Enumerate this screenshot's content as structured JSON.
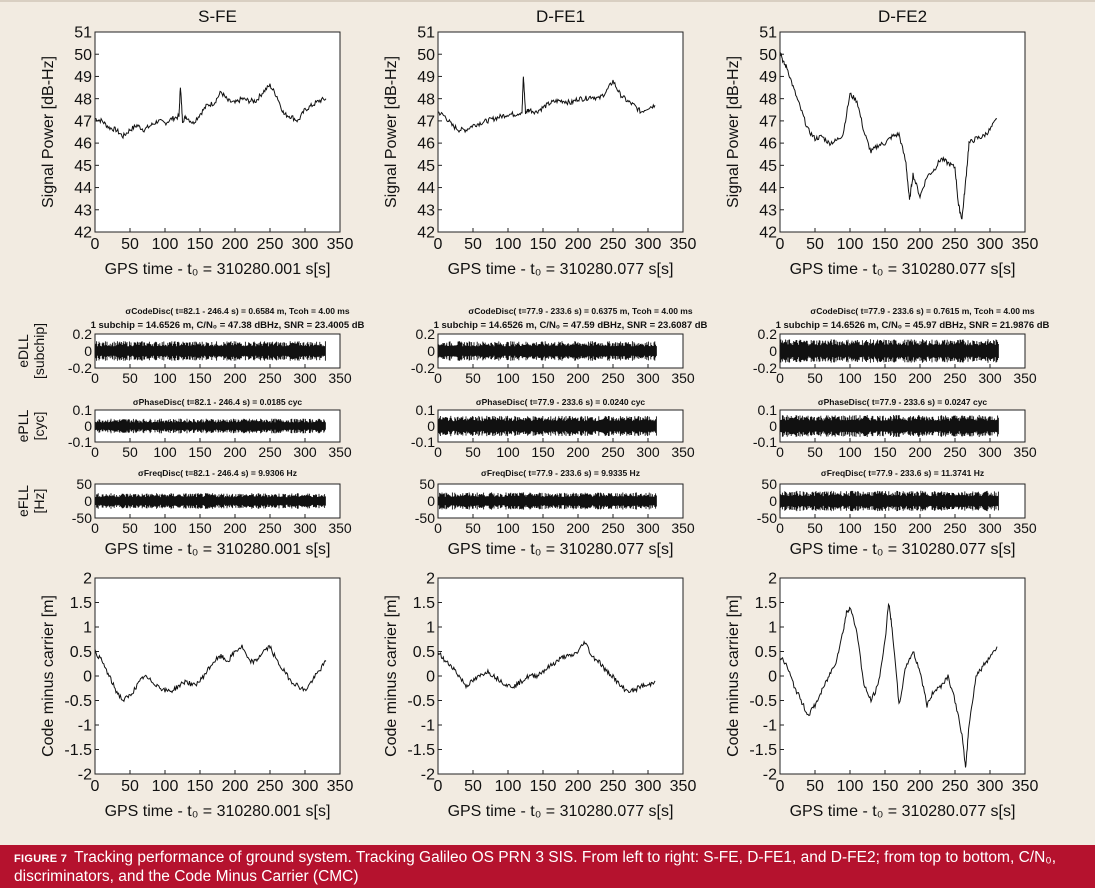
{
  "caption": {
    "label": "FIGURE 7",
    "text": "Tracking performance of ground system. Tracking Galileo OS PRN 3 SIS. From left to right: S-FE, D-FE1, and D-FE2; from top to bottom, C/N₀, discriminators, and the Code Minus Carrier (CMC)"
  },
  "columns": [
    {
      "title": "S-FE",
      "xlabel": "GPS time - t₀ = 310280.001 s[s]",
      "xmax": 330,
      "code_disc": "σCodeDisc( t=82.1 - 246.4 s) = 0.6584 m, Tcoh = 4.00 ms",
      "code_disc2": "1 subchip = 14.6526 m, C/N₀ = 47.38 dBHz, SNR = 23.4005 dB",
      "phase_disc": "σPhaseDisc( t=82.1 - 246.4 s) = 0.0185 cyc",
      "freq_disc": "σFreqDisc( t=82.1 - 246.4 s) = 9.9306 Hz"
    },
    {
      "title": "D-FE1",
      "xlabel": "GPS time - t₀ = 310280.077 s[s]",
      "xmax": 312,
      "code_disc": "σCodeDisc( t=77.9 - 233.6 s) = 0.6375 m, Tcoh = 4.00 ms",
      "code_disc2": "1 subchip = 14.6526 m, C/N₀ = 47.59 dBHz, SNR = 23.6087 dB",
      "phase_disc": "σPhaseDisc( t=77.9 - 233.6 s) = 0.0240 cyc",
      "freq_disc": "σFreqDisc( t=77.9 - 233.6 s) = 9.9335 Hz"
    },
    {
      "title": "D-FE2",
      "xlabel": "GPS time - t₀ = 310280.077 s[s]",
      "xmax": 312,
      "code_disc": "σCodeDisc( t=77.9 - 233.6 s) = 0.7615 m, Tcoh = 4.00 ms",
      "code_disc2": "1 subchip = 14.6526 m, C/N₀ = 45.97 dBHz, SNR = 21.9876 dB",
      "phase_disc": "σPhaseDisc( t=77.9 - 233.6 s) = 0.0247 cyc",
      "freq_disc": "σFreqDisc( t=77.9 - 233.6 s) = 11.3741 Hz"
    }
  ],
  "chart_data": [
    {
      "type": "line",
      "row": "cn0",
      "ylabel": "Signal Power [dB-Hz]",
      "xlim": [
        0,
        350
      ],
      "ylim": [
        42,
        51
      ],
      "xticks": [
        0,
        50,
        100,
        150,
        200,
        250,
        300,
        350
      ],
      "yticks": [
        42,
        43,
        44,
        45,
        46,
        47,
        48,
        49,
        50,
        51
      ],
      "series": [
        {
          "column": "S-FE",
          "x": [
            0,
            10,
            20,
            30,
            40,
            50,
            60,
            70,
            80,
            90,
            100,
            110,
            120,
            122,
            125,
            130,
            140,
            150,
            160,
            170,
            180,
            190,
            200,
            210,
            220,
            230,
            240,
            250,
            260,
            270,
            280,
            290,
            300,
            310,
            320,
            330
          ],
          "y": [
            47.1,
            47.0,
            46.7,
            46.6,
            46.3,
            46.6,
            46.8,
            46.6,
            46.8,
            47.0,
            46.9,
            47.1,
            47.2,
            48.6,
            47.0,
            47.2,
            46.9,
            47.3,
            47.7,
            47.8,
            48.3,
            47.9,
            47.8,
            48.0,
            47.9,
            47.9,
            48.3,
            48.6,
            48.1,
            47.3,
            47.2,
            47.0,
            47.5,
            47.7,
            47.9,
            48.0
          ]
        },
        {
          "column": "D-FE1",
          "x": [
            0,
            10,
            20,
            30,
            40,
            50,
            60,
            70,
            80,
            90,
            100,
            110,
            120,
            122,
            125,
            130,
            140,
            150,
            160,
            170,
            180,
            190,
            200,
            210,
            220,
            230,
            240,
            250,
            260,
            270,
            280,
            290,
            300,
            310
          ],
          "y": [
            47.4,
            47.2,
            46.8,
            46.6,
            46.6,
            46.8,
            46.9,
            47.0,
            47.1,
            47.2,
            47.3,
            47.3,
            47.4,
            49.0,
            47.4,
            47.5,
            47.4,
            47.6,
            47.8,
            47.9,
            47.9,
            47.8,
            48.0,
            48.0,
            48.1,
            48.0,
            48.3,
            48.8,
            48.2,
            47.9,
            47.7,
            47.4,
            47.6,
            47.7
          ]
        },
        {
          "column": "D-FE2",
          "x": [
            0,
            5,
            10,
            20,
            30,
            40,
            50,
            60,
            70,
            80,
            90,
            100,
            110,
            120,
            130,
            140,
            150,
            160,
            170,
            180,
            185,
            190,
            200,
            210,
            220,
            230,
            240,
            250,
            255,
            260,
            265,
            270,
            280,
            290,
            300,
            310
          ],
          "y": [
            50.2,
            49.6,
            49.4,
            48.4,
            47.5,
            46.6,
            46.2,
            46.3,
            46.0,
            46.1,
            46.4,
            48.2,
            47.9,
            46.5,
            45.6,
            45.9,
            46.0,
            46.3,
            46.4,
            45.1,
            43.4,
            44.6,
            43.6,
            44.5,
            44.8,
            45.3,
            45.1,
            44.9,
            43.2,
            42.6,
            44.2,
            46.0,
            46.2,
            46.3,
            46.6,
            47.1
          ]
        }
      ]
    },
    {
      "type": "line",
      "row": "dll",
      "ylabel": "eDLL [subchip]",
      "xlim": [
        0,
        350
      ],
      "ylim": [
        -0.2,
        0.2
      ],
      "xticks": [
        0,
        50,
        100,
        150,
        200,
        250,
        300,
        350
      ],
      "yticks": [
        -0.2,
        0,
        0.2
      ],
      "series": [
        {
          "column": "S-FE",
          "x": [
            0,
            330
          ],
          "amplitude": 0.1
        },
        {
          "column": "D-FE1",
          "x": [
            0,
            312
          ],
          "amplitude": 0.1
        },
        {
          "column": "D-FE2",
          "x": [
            0,
            312
          ],
          "amplitude": 0.12
        }
      ]
    },
    {
      "type": "line",
      "row": "pll",
      "ylabel": "ePLL [cyc]",
      "xlim": [
        0,
        350
      ],
      "ylim": [
        -0.1,
        0.1
      ],
      "xticks": [
        0,
        50,
        100,
        150,
        200,
        250,
        300,
        350
      ],
      "yticks": [
        -0.1,
        0,
        0.1
      ],
      "series": [
        {
          "column": "S-FE",
          "x": [
            0,
            330
          ],
          "amplitude": 0.04
        },
        {
          "column": "D-FE1",
          "x": [
            0,
            312
          ],
          "amplitude": 0.055
        },
        {
          "column": "D-FE2",
          "x": [
            0,
            312
          ],
          "amplitude": 0.06
        }
      ]
    },
    {
      "type": "line",
      "row": "fll",
      "ylabel": "eFLL [Hz]",
      "xlim": [
        0,
        350
      ],
      "ylim": [
        -50,
        50
      ],
      "xticks": [
        0,
        50,
        100,
        150,
        200,
        250,
        300,
        350
      ],
      "yticks": [
        -50,
        0,
        50
      ],
      "series": [
        {
          "column": "S-FE",
          "x": [
            0,
            330
          ],
          "amplitude": 20
        },
        {
          "column": "D-FE1",
          "x": [
            0,
            312
          ],
          "amplitude": 22
        },
        {
          "column": "D-FE2",
          "x": [
            0,
            312
          ],
          "amplitude": 26
        }
      ]
    },
    {
      "type": "line",
      "row": "cmc",
      "ylabel": "Code minus carrier [m]",
      "xlim": [
        0,
        350
      ],
      "ylim": [
        -2,
        2
      ],
      "xticks": [
        0,
        50,
        100,
        150,
        200,
        250,
        300,
        350
      ],
      "yticks": [
        -2,
        -1.5,
        -1,
        -0.5,
        0,
        0.5,
        1,
        1.5,
        2
      ],
      "series": [
        {
          "column": "S-FE",
          "x": [
            0,
            10,
            20,
            30,
            40,
            50,
            60,
            70,
            80,
            90,
            100,
            110,
            120,
            130,
            140,
            150,
            160,
            170,
            180,
            190,
            200,
            210,
            220,
            230,
            240,
            250,
            260,
            270,
            280,
            290,
            300,
            310,
            320,
            330
          ],
          "y": [
            0.5,
            0.3,
            0.0,
            -0.3,
            -0.5,
            -0.4,
            -0.2,
            0.0,
            -0.1,
            -0.2,
            -0.3,
            -0.3,
            -0.2,
            -0.1,
            -0.2,
            -0.1,
            0.1,
            0.3,
            0.4,
            0.3,
            0.5,
            0.6,
            0.3,
            0.3,
            0.5,
            0.6,
            0.3,
            0.1,
            -0.1,
            -0.2,
            -0.3,
            -0.1,
            0.1,
            0.3
          ]
        },
        {
          "column": "D-FE1",
          "x": [
            0,
            10,
            20,
            30,
            40,
            50,
            60,
            70,
            80,
            90,
            100,
            110,
            120,
            130,
            140,
            150,
            160,
            170,
            180,
            190,
            200,
            210,
            220,
            230,
            240,
            250,
            260,
            270,
            280,
            290,
            300,
            310
          ],
          "y": [
            0.5,
            0.3,
            0.2,
            0.0,
            -0.2,
            -0.1,
            0.0,
            0.1,
            0.0,
            -0.1,
            -0.2,
            -0.2,
            -0.1,
            0.0,
            0.0,
            0.1,
            0.2,
            0.3,
            0.4,
            0.4,
            0.5,
            0.7,
            0.4,
            0.3,
            0.1,
            0.0,
            -0.2,
            -0.3,
            -0.3,
            -0.2,
            -0.2,
            -0.1
          ]
        },
        {
          "column": "D-FE2",
          "x": [
            0,
            10,
            20,
            30,
            40,
            50,
            60,
            70,
            80,
            90,
            95,
            100,
            110,
            120,
            130,
            140,
            150,
            155,
            160,
            170,
            180,
            190,
            200,
            210,
            220,
            230,
            240,
            250,
            260,
            265,
            270,
            280,
            290,
            300,
            310
          ],
          "y": [
            0.4,
            0.2,
            -0.2,
            -0.5,
            -0.8,
            -0.6,
            -0.3,
            0.0,
            0.3,
            0.9,
            1.3,
            1.4,
            0.9,
            -0.2,
            -0.5,
            -0.2,
            0.7,
            1.5,
            1.0,
            -0.6,
            0.2,
            0.5,
            0.1,
            -0.6,
            -0.3,
            -0.2,
            0.0,
            -0.5,
            -1.2,
            -1.9,
            -1.0,
            0.0,
            0.2,
            0.4,
            0.6
          ]
        }
      ]
    }
  ]
}
